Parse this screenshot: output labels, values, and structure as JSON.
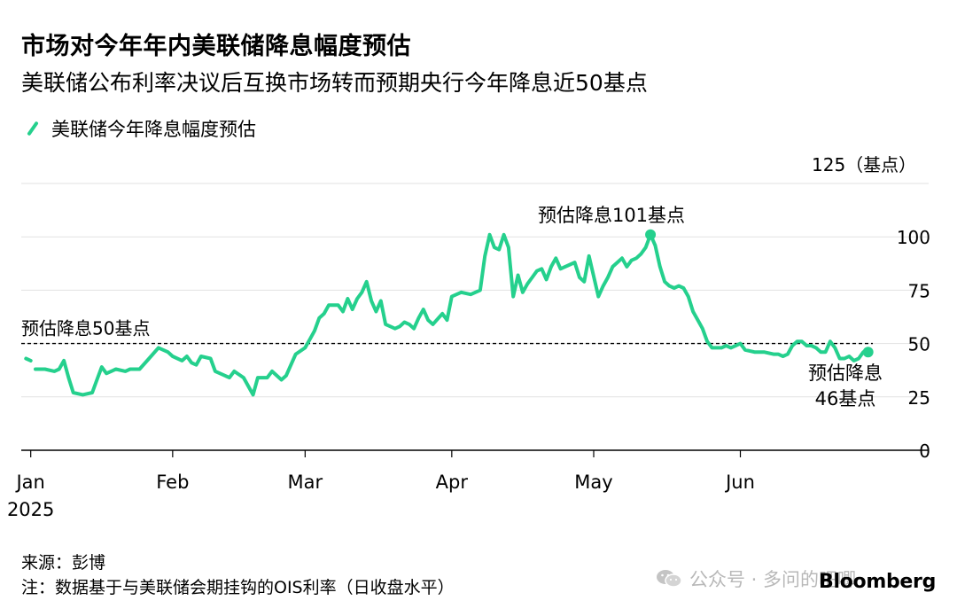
{
  "title": "市场对今年年内美联储降息幅度预估",
  "subtitle": "美联储公布利率决议后互换市场转而预期央行今年降息近50基点",
  "legend": {
    "label": "美联储今年降息幅度预估",
    "color": "#25d08d"
  },
  "unit_label": "125（基点）",
  "source": "来源：彭博",
  "note": "注：数据基于与美联储会期挂钩的OIS利率（日收盘水平）",
  "watermark": "公众号 · 多问的吧唧",
  "watermark_icon": "wechat-icon",
  "brand": "Bloomberg",
  "chart_data": {
    "type": "line",
    "y_ticks": [
      "0",
      "25",
      "50",
      "75",
      "100"
    ],
    "ylim": [
      0,
      125
    ],
    "x_ticks": [
      {
        "label": "Jan",
        "day": 2,
        "sub": "2025"
      },
      {
        "label": "Feb",
        "day": 32,
        "sub": ""
      },
      {
        "label": "Mar",
        "day": 60,
        "sub": ""
      },
      {
        "label": "Apr",
        "day": 91,
        "sub": ""
      },
      {
        "label": "May",
        "day": 121,
        "sub": ""
      },
      {
        "label": "Jun",
        "day": 152,
        "sub": ""
      }
    ],
    "xlim": [
      0,
      180
    ],
    "reference_line": {
      "value": 50,
      "label": "预估降息50基点"
    },
    "annotations": [
      {
        "text": "预估降息101基点",
        "day": 115,
        "value": 101
      },
      {
        "text": "预估降息",
        "text2": "46基点",
        "day": 170,
        "value": 46
      }
    ],
    "series": [
      {
        "values": [
          [
            1,
            43
          ],
          [
            2,
            42
          ],
          [
            3,
            38
          ],
          [
            5,
            38
          ],
          [
            7,
            37
          ],
          [
            8,
            38
          ],
          [
            9,
            42
          ],
          [
            10,
            34
          ],
          [
            11,
            27
          ],
          [
            13,
            26
          ],
          [
            15,
            27
          ],
          [
            16,
            33
          ],
          [
            17,
            39
          ],
          [
            18,
            36
          ],
          [
            20,
            38
          ],
          [
            22,
            37
          ],
          [
            23,
            38
          ],
          [
            25,
            38
          ],
          [
            27,
            43
          ],
          [
            29,
            48
          ],
          [
            31,
            46
          ],
          [
            32,
            44
          ],
          [
            34,
            42
          ],
          [
            35,
            44
          ],
          [
            36,
            41
          ],
          [
            37,
            40
          ],
          [
            38,
            44
          ],
          [
            40,
            43
          ],
          [
            41,
            37
          ],
          [
            43,
            35
          ],
          [
            44,
            34
          ],
          [
            45,
            37
          ],
          [
            47,
            34
          ],
          [
            49,
            26
          ],
          [
            50,
            34
          ],
          [
            52,
            34
          ],
          [
            53,
            37
          ],
          [
            55,
            33
          ],
          [
            56,
            35
          ],
          [
            57,
            40
          ],
          [
            58,
            45
          ],
          [
            60,
            48
          ],
          [
            61,
            52
          ],
          [
            62,
            56
          ],
          [
            63,
            62
          ],
          [
            64,
            64
          ],
          [
            65,
            68
          ],
          [
            67,
            68
          ],
          [
            68,
            65
          ],
          [
            69,
            71
          ],
          [
            70,
            66
          ],
          [
            71,
            71
          ],
          [
            72,
            74
          ],
          [
            73,
            79
          ],
          [
            74,
            70
          ],
          [
            75,
            65
          ],
          [
            76,
            70
          ],
          [
            77,
            59
          ],
          [
            79,
            57
          ],
          [
            80,
            58
          ],
          [
            81,
            60
          ],
          [
            82,
            59
          ],
          [
            83,
            57
          ],
          [
            84,
            62
          ],
          [
            85,
            66
          ],
          [
            86,
            61
          ],
          [
            87,
            59
          ],
          [
            89,
            64
          ],
          [
            90,
            61
          ],
          [
            91,
            72
          ],
          [
            93,
            74
          ],
          [
            95,
            73
          ],
          [
            97,
            75
          ],
          [
            98,
            91
          ],
          [
            99,
            101
          ],
          [
            100,
            95
          ],
          [
            101,
            94
          ],
          [
            102,
            101
          ],
          [
            103,
            95
          ],
          [
            104,
            72
          ],
          [
            105,
            82
          ],
          [
            106,
            74
          ],
          [
            107,
            78
          ],
          [
            108,
            81
          ],
          [
            109,
            84
          ],
          [
            110,
            85
          ],
          [
            111,
            80
          ],
          [
            112,
            86
          ],
          [
            113,
            90
          ],
          [
            114,
            85
          ],
          [
            116,
            87
          ],
          [
            117,
            88
          ],
          [
            118,
            81
          ],
          [
            119,
            79
          ],
          [
            120,
            91
          ],
          [
            122,
            72
          ],
          [
            123,
            77
          ],
          [
            124,
            81
          ],
          [
            125,
            86
          ],
          [
            126,
            88
          ],
          [
            127,
            90
          ],
          [
            128,
            86
          ],
          [
            129,
            89
          ],
          [
            130,
            90
          ],
          [
            131,
            92
          ],
          [
            132,
            95
          ],
          [
            133,
            101
          ],
          [
            134,
            96
          ],
          [
            135,
            86
          ],
          [
            136,
            79
          ],
          [
            137,
            77
          ],
          [
            138,
            76
          ],
          [
            139,
            77
          ],
          [
            140,
            76
          ],
          [
            141,
            72
          ],
          [
            142,
            65
          ],
          [
            143,
            61
          ],
          [
            144,
            57
          ],
          [
            145,
            51
          ],
          [
            146,
            48
          ],
          [
            147,
            48
          ],
          [
            148,
            48
          ],
          [
            149,
            49
          ],
          [
            150,
            48
          ],
          [
            151,
            49
          ],
          [
            152,
            50
          ],
          [
            153,
            47
          ],
          [
            155,
            46
          ],
          [
            157,
            46
          ],
          [
            159,
            45
          ],
          [
            160,
            45
          ],
          [
            161,
            44
          ],
          [
            162,
            45
          ],
          [
            163,
            49
          ],
          [
            164,
            51
          ],
          [
            165,
            51
          ],
          [
            166,
            49
          ],
          [
            167,
            49
          ],
          [
            168,
            48
          ],
          [
            169,
            46
          ],
          [
            170,
            46
          ],
          [
            171,
            51
          ],
          [
            172,
            48
          ],
          [
            173,
            43
          ],
          [
            174,
            43
          ],
          [
            175,
            44
          ],
          [
            176,
            42
          ],
          [
            177,
            43
          ],
          [
            178,
            46
          ],
          [
            179,
            47
          ]
        ]
      }
    ]
  }
}
